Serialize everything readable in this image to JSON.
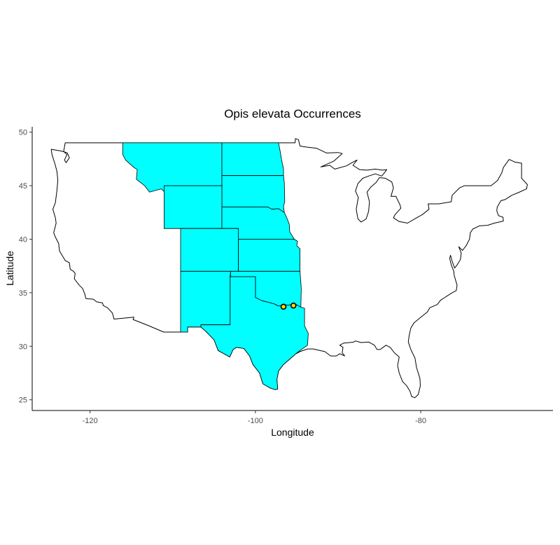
{
  "chart_data": {
    "type": "map",
    "title": "Opis elevata Occurrences",
    "xlabel": "Longitude",
    "ylabel": "Latitude",
    "xlim": [
      -127,
      -64
    ],
    "ylim": [
      24,
      50.5
    ],
    "x_ticks": [
      -120,
      -100,
      -80
    ],
    "y_ticks": [
      25,
      30,
      35,
      40,
      45,
      50
    ],
    "x_tick_labels": [
      "-120",
      "-100",
      "-80"
    ],
    "y_tick_labels": [
      "25",
      "30",
      "35",
      "40",
      "45",
      "50"
    ],
    "highlight_color": "#00ffff",
    "point_fill": "#ffd700",
    "highlighted_regions": [
      {
        "name": "montana",
        "coords": [
          [
            -116.05,
            49.0
          ],
          [
            -104.05,
            49.0
          ],
          [
            -104.05,
            45.0
          ],
          [
            -111.05,
            45.0
          ],
          [
            -111.05,
            44.45
          ],
          [
            -111.4,
            44.7
          ],
          [
            -112.8,
            44.4
          ],
          [
            -113.4,
            45.0
          ],
          [
            -114.4,
            45.6
          ],
          [
            -114.3,
            46.5
          ],
          [
            -114.7,
            46.7
          ],
          [
            -115.7,
            47.4
          ],
          [
            -116.05,
            47.9
          ]
        ]
      },
      {
        "name": "north-dakota",
        "coords": [
          [
            -104.05,
            49.0
          ],
          [
            -97.2,
            49.0
          ],
          [
            -97.0,
            48.2
          ],
          [
            -96.8,
            47.3
          ],
          [
            -96.6,
            46.6
          ],
          [
            -96.6,
            45.94
          ],
          [
            -104.05,
            45.94
          ]
        ]
      },
      {
        "name": "south-dakota",
        "coords": [
          [
            -104.05,
            45.94
          ],
          [
            -96.6,
            45.94
          ],
          [
            -96.5,
            45.3
          ],
          [
            -96.45,
            43.5
          ],
          [
            -96.6,
            43.1
          ],
          [
            -96.5,
            42.5
          ],
          [
            -97.2,
            42.85
          ],
          [
            -98.0,
            42.8
          ],
          [
            -98.5,
            43.0
          ],
          [
            -104.05,
            43.0
          ]
        ]
      },
      {
        "name": "wyoming",
        "coords": [
          [
            -111.05,
            45.0
          ],
          [
            -104.05,
            45.0
          ],
          [
            -104.05,
            41.0
          ],
          [
            -111.05,
            41.0
          ]
        ]
      },
      {
        "name": "nebraska",
        "coords": [
          [
            -104.05,
            43.0
          ],
          [
            -98.5,
            43.0
          ],
          [
            -98.0,
            42.8
          ],
          [
            -97.2,
            42.85
          ],
          [
            -96.5,
            42.5
          ],
          [
            -96.2,
            42.0
          ],
          [
            -95.9,
            41.4
          ],
          [
            -95.85,
            40.7
          ],
          [
            -95.3,
            40.0
          ],
          [
            -102.05,
            40.0
          ],
          [
            -102.05,
            41.0
          ],
          [
            -104.05,
            41.0
          ]
        ]
      },
      {
        "name": "colorado",
        "coords": [
          [
            -109.05,
            41.0
          ],
          [
            -102.05,
            41.0
          ],
          [
            -102.05,
            37.0
          ],
          [
            -109.05,
            37.0
          ]
        ]
      },
      {
        "name": "kansas",
        "coords": [
          [
            -102.05,
            40.0
          ],
          [
            -95.3,
            40.0
          ],
          [
            -94.9,
            39.8
          ],
          [
            -95.0,
            39.4
          ],
          [
            -94.6,
            39.1
          ],
          [
            -94.6,
            37.0
          ],
          [
            -102.05,
            37.0
          ]
        ]
      },
      {
        "name": "new-mexico",
        "coords": [
          [
            -109.05,
            37.0
          ],
          [
            -103.0,
            37.0
          ],
          [
            -103.05,
            36.5
          ],
          [
            -103.05,
            32.0
          ],
          [
            -106.6,
            32.0
          ],
          [
            -106.5,
            31.8
          ],
          [
            -108.2,
            31.8
          ],
          [
            -108.2,
            31.33
          ],
          [
            -109.05,
            31.33
          ]
        ]
      },
      {
        "name": "oklahoma",
        "coords": [
          [
            -103.0,
            37.0
          ],
          [
            -94.6,
            37.0
          ],
          [
            -94.45,
            35.4
          ],
          [
            -94.5,
            33.65
          ],
          [
            -95.2,
            33.95
          ],
          [
            -96.0,
            33.85
          ],
          [
            -96.6,
            33.85
          ],
          [
            -97.2,
            33.75
          ],
          [
            -97.7,
            33.95
          ],
          [
            -98.4,
            34.1
          ],
          [
            -99.2,
            34.25
          ],
          [
            -100.0,
            34.56
          ],
          [
            -100.0,
            36.5
          ],
          [
            -103.0,
            36.5
          ]
        ]
      },
      {
        "name": "texas",
        "coords": [
          [
            -106.6,
            32.0
          ],
          [
            -103.05,
            32.0
          ],
          [
            -103.05,
            36.5
          ],
          [
            -100.0,
            36.5
          ],
          [
            -100.0,
            34.56
          ],
          [
            -99.2,
            34.25
          ],
          [
            -98.4,
            34.1
          ],
          [
            -97.7,
            33.95
          ],
          [
            -97.2,
            33.75
          ],
          [
            -96.6,
            33.85
          ],
          [
            -96.0,
            33.85
          ],
          [
            -95.2,
            33.95
          ],
          [
            -94.5,
            33.65
          ],
          [
            -94.05,
            33.55
          ],
          [
            -94.05,
            31.9
          ],
          [
            -93.6,
            31.2
          ],
          [
            -93.7,
            30.1
          ],
          [
            -94.6,
            29.6
          ],
          [
            -95.1,
            29.3
          ],
          [
            -96.0,
            28.7
          ],
          [
            -96.6,
            28.3
          ],
          [
            -97.2,
            27.7
          ],
          [
            -97.4,
            26.9
          ],
          [
            -97.3,
            26.0
          ],
          [
            -97.6,
            25.95
          ],
          [
            -98.2,
            26.1
          ],
          [
            -99.1,
            26.5
          ],
          [
            -99.5,
            27.5
          ],
          [
            -100.3,
            28.3
          ],
          [
            -100.7,
            29.1
          ],
          [
            -101.4,
            29.8
          ],
          [
            -102.3,
            29.9
          ],
          [
            -102.7,
            29.7
          ],
          [
            -103.1,
            29.0
          ],
          [
            -103.8,
            29.3
          ],
          [
            -104.5,
            29.6
          ],
          [
            -105.0,
            30.6
          ],
          [
            -106.0,
            31.4
          ],
          [
            -106.6,
            31.8
          ]
        ]
      }
    ],
    "points": [
      {
        "lon": -96.6,
        "lat": 33.7
      },
      {
        "lon": -95.4,
        "lat": 33.8
      }
    ],
    "us_outline": [
      [
        -124.7,
        48.4
      ],
      [
        -123.6,
        48.25
      ],
      [
        -123.1,
        48.15
      ],
      [
        -122.75,
        48.05
      ],
      [
        -122.5,
        47.6
      ],
      [
        -122.9,
        47.15
      ],
      [
        -123.1,
        47.4
      ],
      [
        -122.8,
        47.9
      ],
      [
        -123.2,
        48.2
      ],
      [
        -123.0,
        49.0
      ],
      [
        -113.0,
        49.0
      ],
      [
        -104.05,
        49.0
      ],
      [
        -97.2,
        49.0
      ],
      [
        -95.2,
        49.0
      ],
      [
        -95.15,
        49.4
      ],
      [
        -94.8,
        49.3
      ],
      [
        -94.6,
        48.7
      ],
      [
        -93.8,
        48.6
      ],
      [
        -92.6,
        48.5
      ],
      [
        -91.4,
        48.05
      ],
      [
        -90.0,
        48.1
      ],
      [
        -89.5,
        48.0
      ],
      [
        -90.5,
        47.3
      ],
      [
        -92.1,
        46.75
      ],
      [
        -91.0,
        46.9
      ],
      [
        -90.4,
        46.55
      ],
      [
        -89.0,
        46.85
      ],
      [
        -88.2,
        47.2
      ],
      [
        -87.7,
        47.4
      ],
      [
        -88.2,
        46.9
      ],
      [
        -87.4,
        46.5
      ],
      [
        -86.5,
        46.45
      ],
      [
        -85.5,
        46.55
      ],
      [
        -84.6,
        46.45
      ],
      [
        -84.1,
        46.5
      ],
      [
        -84.7,
        45.9
      ],
      [
        -85.5,
        46.1
      ],
      [
        -86.3,
        45.9
      ],
      [
        -87.0,
        45.7
      ],
      [
        -87.6,
        45.2
      ],
      [
        -87.9,
        44.5
      ],
      [
        -87.55,
        43.9
      ],
      [
        -87.8,
        42.8
      ],
      [
        -87.6,
        41.9
      ],
      [
        -87.2,
        41.6
      ],
      [
        -86.6,
        41.9
      ],
      [
        -86.3,
        42.6
      ],
      [
        -86.2,
        43.5
      ],
      [
        -86.5,
        44.4
      ],
      [
        -86.0,
        44.9
      ],
      [
        -85.4,
        45.3
      ],
      [
        -85.0,
        45.75
      ],
      [
        -84.3,
        45.7
      ],
      [
        -83.5,
        45.35
      ],
      [
        -83.3,
        44.8
      ],
      [
        -83.6,
        44.0
      ],
      [
        -83.0,
        44.0
      ],
      [
        -82.5,
        43.2
      ],
      [
        -82.4,
        42.9
      ],
      [
        -83.1,
        42.3
      ],
      [
        -83.3,
        42.0
      ],
      [
        -82.6,
        41.65
      ],
      [
        -81.6,
        41.5
      ],
      [
        -80.5,
        42.0
      ],
      [
        -79.8,
        42.3
      ],
      [
        -79.0,
        42.8
      ],
      [
        -79.1,
        43.3
      ],
      [
        -77.8,
        43.3
      ],
      [
        -76.3,
        43.5
      ],
      [
        -76.2,
        44.1
      ],
      [
        -75.3,
        44.8
      ],
      [
        -74.7,
        45.0
      ],
      [
        -71.5,
        45.0
      ],
      [
        -71.0,
        45.3
      ],
      [
        -70.7,
        45.5
      ],
      [
        -70.2,
        46.2
      ],
      [
        -70.0,
        46.7
      ],
      [
        -69.3,
        47.45
      ],
      [
        -68.6,
        47.2
      ],
      [
        -67.8,
        47.1
      ],
      [
        -67.8,
        45.7
      ],
      [
        -67.1,
        45.1
      ],
      [
        -67.2,
        44.7
      ],
      [
        -68.2,
        44.35
      ],
      [
        -69.0,
        44.1
      ],
      [
        -69.8,
        43.7
      ],
      [
        -70.3,
        43.6
      ],
      [
        -70.75,
        43.0
      ],
      [
        -70.8,
        42.65
      ],
      [
        -70.6,
        42.2
      ],
      [
        -70.05,
        42.05
      ],
      [
        -70.0,
        41.7
      ],
      [
        -70.5,
        41.6
      ],
      [
        -71.1,
        41.5
      ],
      [
        -71.9,
        41.3
      ],
      [
        -72.9,
        41.25
      ],
      [
        -73.7,
        40.95
      ],
      [
        -74.0,
        40.6
      ],
      [
        -74.1,
        40.0
      ],
      [
        -74.5,
        39.4
      ],
      [
        -74.95,
        38.95
      ],
      [
        -75.4,
        39.3
      ],
      [
        -75.1,
        38.7
      ],
      [
        -75.2,
        38.1
      ],
      [
        -75.6,
        37.6
      ],
      [
        -75.9,
        37.3
      ],
      [
        -76.2,
        37.95
      ],
      [
        -76.4,
        38.5
      ],
      [
        -76.5,
        38.2
      ],
      [
        -76.3,
        37.6
      ],
      [
        -76.0,
        37.0
      ],
      [
        -75.95,
        36.6
      ],
      [
        -75.6,
        35.7
      ],
      [
        -75.7,
        35.2
      ],
      [
        -76.2,
        35.0
      ],
      [
        -76.7,
        34.75
      ],
      [
        -77.6,
        34.3
      ],
      [
        -78.0,
        33.9
      ],
      [
        -78.9,
        33.6
      ],
      [
        -79.2,
        33.2
      ],
      [
        -80.0,
        32.7
      ],
      [
        -80.8,
        32.2
      ],
      [
        -81.2,
        31.7
      ],
      [
        -81.4,
        31.0
      ],
      [
        -81.5,
        30.4
      ],
      [
        -81.2,
        29.7
      ],
      [
        -80.7,
        28.9
      ],
      [
        -80.5,
        28.0
      ],
      [
        -80.1,
        27.0
      ],
      [
        -80.05,
        26.3
      ],
      [
        -80.3,
        25.5
      ],
      [
        -80.7,
        25.2
      ],
      [
        -81.1,
        25.3
      ],
      [
        -81.3,
        25.8
      ],
      [
        -81.7,
        26.3
      ],
      [
        -82.2,
        26.7
      ],
      [
        -82.6,
        27.5
      ],
      [
        -82.8,
        28.2
      ],
      [
        -82.6,
        29.0
      ],
      [
        -83.2,
        29.4
      ],
      [
        -83.7,
        29.9
      ],
      [
        -84.2,
        30.1
      ],
      [
        -84.9,
        29.7
      ],
      [
        -85.3,
        29.7
      ],
      [
        -85.6,
        30.1
      ],
      [
        -86.3,
        30.4
      ],
      [
        -87.2,
        30.35
      ],
      [
        -87.9,
        30.5
      ],
      [
        -88.1,
        30.4
      ],
      [
        -88.6,
        30.35
      ],
      [
        -89.3,
        30.3
      ],
      [
        -89.8,
        30.1
      ],
      [
        -89.4,
        29.9
      ],
      [
        -89.5,
        29.4
      ],
      [
        -89.2,
        29.1
      ],
      [
        -89.8,
        29.3
      ],
      [
        -90.2,
        29.1
      ],
      [
        -90.9,
        29.1
      ],
      [
        -91.6,
        29.5
      ],
      [
        -92.2,
        29.6
      ],
      [
        -93.0,
        29.75
      ],
      [
        -93.7,
        29.75
      ],
      [
        -94.6,
        29.5
      ],
      [
        -95.1,
        29.3
      ],
      [
        -96.0,
        28.7
      ],
      [
        -96.6,
        28.3
      ],
      [
        -97.2,
        27.7
      ],
      [
        -97.4,
        26.9
      ],
      [
        -97.3,
        26.0
      ],
      [
        -97.6,
        25.95
      ],
      [
        -98.2,
        26.1
      ],
      [
        -99.1,
        26.5
      ],
      [
        -99.5,
        27.5
      ],
      [
        -100.3,
        28.3
      ],
      [
        -100.7,
        29.1
      ],
      [
        -101.4,
        29.8
      ],
      [
        -102.3,
        29.9
      ],
      [
        -102.7,
        29.7
      ],
      [
        -103.1,
        29.0
      ],
      [
        -103.8,
        29.3
      ],
      [
        -104.5,
        29.6
      ],
      [
        -105.0,
        30.6
      ],
      [
        -106.0,
        31.4
      ],
      [
        -106.6,
        31.8
      ],
      [
        -108.2,
        31.8
      ],
      [
        -108.2,
        31.33
      ],
      [
        -111.1,
        31.33
      ],
      [
        -113.0,
        31.95
      ],
      [
        -114.8,
        32.5
      ],
      [
        -114.7,
        32.72
      ],
      [
        -117.1,
        32.54
      ],
      [
        -117.3,
        33.1
      ],
      [
        -117.9,
        33.6
      ],
      [
        -118.4,
        33.8
      ],
      [
        -118.5,
        34.05
      ],
      [
        -119.2,
        34.15
      ],
      [
        -119.6,
        34.4
      ],
      [
        -120.5,
        34.45
      ],
      [
        -120.65,
        34.9
      ],
      [
        -120.9,
        35.4
      ],
      [
        -121.3,
        35.7
      ],
      [
        -121.9,
        36.3
      ],
      [
        -121.8,
        36.8
      ],
      [
        -122.0,
        37.0
      ],
      [
        -122.4,
        37.2
      ],
      [
        -122.5,
        37.8
      ],
      [
        -123.0,
        38.0
      ],
      [
        -123.7,
        38.9
      ],
      [
        -123.8,
        39.6
      ],
      [
        -124.2,
        40.2
      ],
      [
        -124.4,
        40.6
      ],
      [
        -124.1,
        41.5
      ],
      [
        -124.2,
        42.0
      ],
      [
        -124.5,
        42.8
      ],
      [
        -124.2,
        43.4
      ],
      [
        -124.0,
        44.6
      ],
      [
        -123.9,
        45.5
      ],
      [
        -124.0,
        46.3
      ],
      [
        -124.2,
        46.9
      ],
      [
        -124.6,
        47.9
      ],
      [
        -124.7,
        48.4
      ]
    ]
  }
}
